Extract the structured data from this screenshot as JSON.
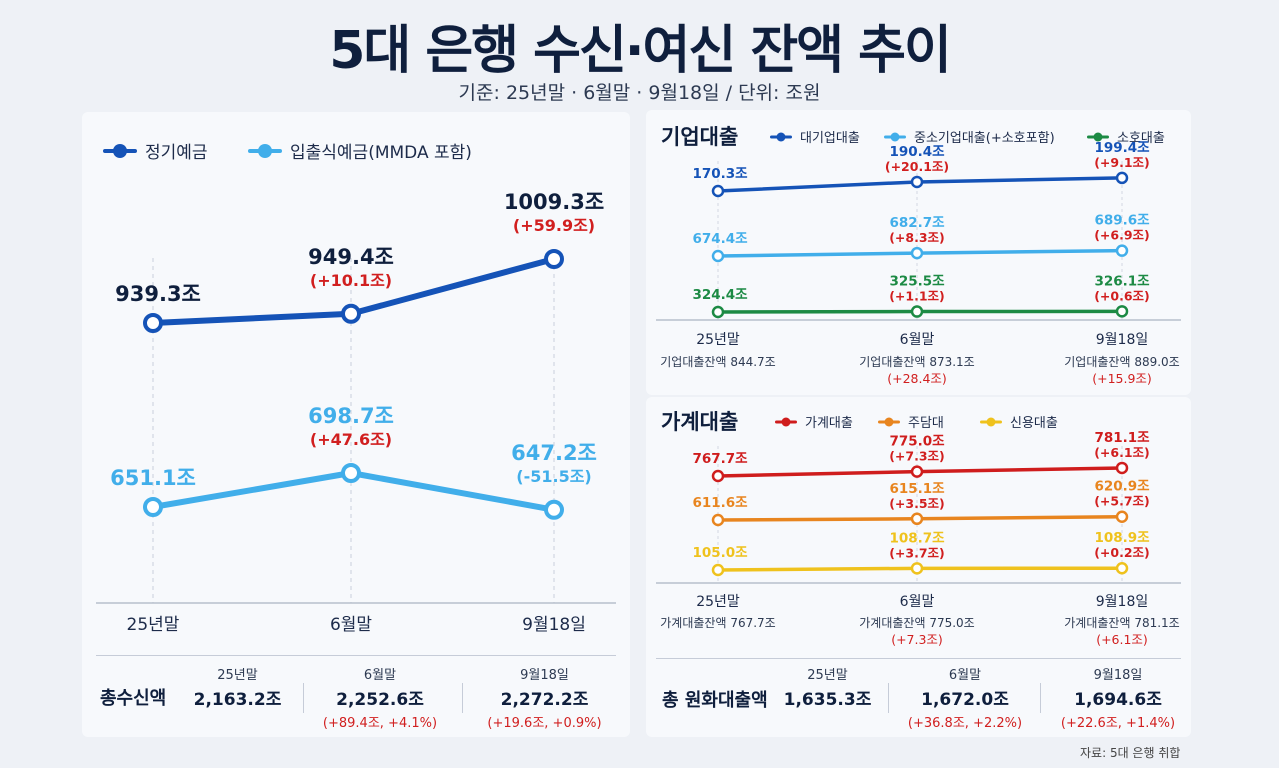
{
  "header": {
    "title": "5대 은행 수신·여신 잔액 추이",
    "subtitle": "기준: 25년말 · 6월말 · 9월18일 / 단위: 조원"
  },
  "colors": {
    "dark_blue": "#1553b7",
    "light_blue": "#41aeea",
    "green": "#1c8a44",
    "red": "#cf1d1d",
    "orange": "#e8851f",
    "yellow": "#efc21d",
    "change_red": "#d11f1f"
  },
  "left_summary": {
    "label": "총수신액",
    "columns": [
      {
        "period": "25년말",
        "value": "2,163.2조",
        "change": ""
      },
      {
        "period": "6월말",
        "value": "2,252.6조",
        "change": "(+89.4조, +4.1%)"
      },
      {
        "period": "9월18일",
        "value": "2,272.2조",
        "change": "(+19.6조, +0.9%)"
      }
    ]
  },
  "corp_notes": [
    {
      "total": "기업대출잔액 844.7조",
      "change": ""
    },
    {
      "total": "기업대출잔액  873.1조",
      "change": "(+28.4조)"
    },
    {
      "total": "기업대출잔액 889.0조",
      "change": "(+15.9조)"
    }
  ],
  "house_notes": [
    {
      "total": "가계대출잔액 767.7조",
      "change": ""
    },
    {
      "total": "가계대출잔액  775.0조",
      "change": "(+7.3조)"
    },
    {
      "total": "가계대출잔액 781.1조",
      "change": "(+6.1조)"
    }
  ],
  "right_summary": {
    "label": "총 원화대출액",
    "columns": [
      {
        "period": "25년말",
        "value": "1,635.3조",
        "change": ""
      },
      {
        "period": "6월말",
        "value": "1,672.0조",
        "change": "(+36.8조, +2.2%)"
      },
      {
        "period": "9월18일",
        "value": "1,694.6조",
        "change": "(+22.6조, +1.4%)"
      }
    ]
  },
  "source": "자료: 5대 은행 취합",
  "chart_data": [
    {
      "type": "line",
      "title": "",
      "categories": [
        "25년말",
        "6월말",
        "9월18일"
      ],
      "series": [
        {
          "name": "정기예금",
          "values": [
            939.3,
            949.4,
            1009.3
          ],
          "labels": [
            "939.3조",
            "949.4조",
            "1009.3조"
          ],
          "changes": [
            "",
            "(+10.1조)",
            "(+59.9조)"
          ],
          "color": "#1553b7"
        },
        {
          "name": "입출식예금(MMDA 포함)",
          "values": [
            651.1,
            698.7,
            647.2
          ],
          "labels": [
            "651.1조",
            "698.7조",
            "647.2조"
          ],
          "changes": [
            "",
            "(+47.6조)",
            "(-51.5조)"
          ],
          "color": "#41aeea"
        }
      ]
    },
    {
      "type": "line",
      "title": "기업대출",
      "categories": [
        "25년말",
        "6월말",
        "9월18일"
      ],
      "series": [
        {
          "name": "대기업대출",
          "values": [
            170.3,
            190.4,
            199.4
          ],
          "labels": [
            "170.3조",
            "190.4조",
            "199.4조"
          ],
          "changes": [
            "",
            "(+20.1조)",
            "(+9.1조)"
          ],
          "color": "#1553b7"
        },
        {
          "name": "중소기업대출(+소호포함)",
          "values": [
            674.4,
            682.7,
            689.6
          ],
          "labels": [
            "674.4조",
            "682.7조",
            "689.6조"
          ],
          "changes": [
            "",
            "(+8.3조)",
            "(+6.9조)"
          ],
          "color": "#41aeea"
        },
        {
          "name": "소호대출",
          "values": [
            324.4,
            325.5,
            326.1
          ],
          "labels": [
            "324.4조",
            "325.5조",
            "326.1조"
          ],
          "changes": [
            "",
            "(+1.1조)",
            "(+0.6조)"
          ],
          "color": "#1c8a44"
        }
      ]
    },
    {
      "type": "line",
      "title": "가계대출",
      "categories": [
        "25년말",
        "6월말",
        "9월18일"
      ],
      "series": [
        {
          "name": "가계대출",
          "values": [
            767.7,
            775.0,
            781.1
          ],
          "labels": [
            "767.7조",
            "775.0조",
            "781.1조"
          ],
          "changes": [
            "",
            "(+7.3조)",
            "(+6.1조)"
          ],
          "color": "#cf1d1d"
        },
        {
          "name": "주담대",
          "values": [
            611.6,
            615.1,
            620.9
          ],
          "labels": [
            "611.6조",
            "615.1조",
            "620.9조"
          ],
          "changes": [
            "",
            "(+3.5조)",
            "(+5.7조)"
          ],
          "color": "#e8851f"
        },
        {
          "name": "신용대출",
          "values": [
            105.0,
            108.7,
            108.9
          ],
          "labels": [
            "105.0조",
            "108.7조",
            "108.9조"
          ],
          "changes": [
            "",
            "(+3.7조)",
            "(+0.2조)"
          ],
          "color": "#efc21d"
        }
      ]
    }
  ]
}
